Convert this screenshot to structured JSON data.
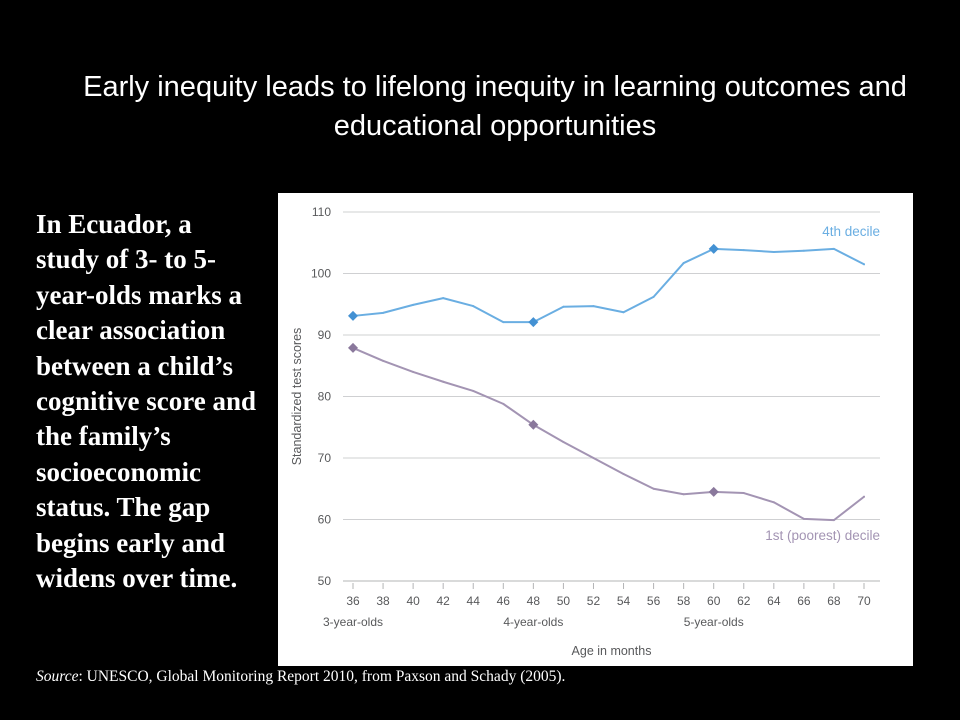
{
  "slide": {
    "title": "Early inequity leads to lifelong inequity in learning outcomes and educational opportunities",
    "background": "#000000",
    "text_color": "#ffffff"
  },
  "body": {
    "lines": [
      "In Ecuador, a",
      "study of 3- to 5-",
      "year-olds marks a",
      "clear association",
      "between a child’s",
      "cognitive score and",
      "the family’s",
      "socioeconomic",
      "status. The gap",
      "begins early and",
      "widens over time."
    ]
  },
  "source": {
    "label": "Source",
    "text": ": UNESCO, Global Monitoring Report 2010, from Paxson and Schady (2005)."
  },
  "chart_data": {
    "type": "line",
    "x": [
      36,
      38,
      40,
      42,
      44,
      46,
      48,
      50,
      52,
      54,
      56,
      58,
      60,
      62,
      64,
      66,
      68,
      70
    ],
    "xlim": [
      36,
      70
    ],
    "xlabel": "Age in months",
    "x_groups": [
      {
        "label": "3-year-olds",
        "x": 36
      },
      {
        "label": "4-year-olds",
        "x": 48
      },
      {
        "label": "5-year-olds",
        "x": 60
      }
    ],
    "ylabel": "Standardized test scores",
    "ylim": [
      50,
      110
    ],
    "yticks": [
      50,
      60,
      70,
      80,
      90,
      100,
      110
    ],
    "grid": true,
    "legend": "inline-right",
    "series": [
      {
        "name": "4th decile",
        "color": "#6aaee2",
        "marker_color": "#4391d3",
        "markers_at": [
          36,
          48,
          60
        ],
        "values": [
          93.1,
          93.6,
          94.9,
          96.0,
          94.7,
          92.1,
          92.1,
          94.6,
          94.7,
          93.7,
          96.2,
          101.7,
          104.0,
          103.8,
          103.5,
          103.7,
          104.0,
          101.5
        ]
      },
      {
        "name": "1st (poorest) decile",
        "color": "#a394b3",
        "marker_color": "#8a789c",
        "markers_at": [
          36,
          48,
          60
        ],
        "values": [
          87.9,
          85.8,
          84.0,
          82.4,
          80.9,
          78.8,
          75.4,
          72.6,
          70.0,
          67.4,
          65.0,
          64.1,
          64.5,
          64.3,
          62.8,
          60.1,
          59.9,
          63.7
        ]
      }
    ]
  }
}
